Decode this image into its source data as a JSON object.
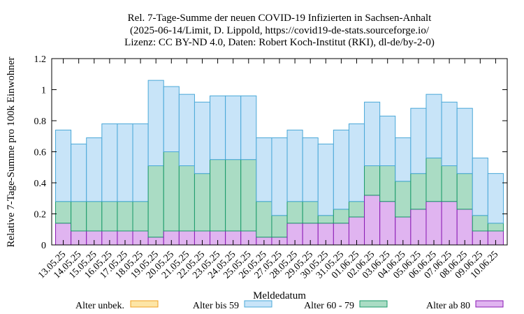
{
  "chart_data": {
    "type": "bar",
    "stacked": true,
    "title_lines": [
      "Rel. 7-Tage-Summe der neuen COVID-19 Infizierten in Sachsen-Anhalt",
      "(2025-06-14/Limit, D. Lippold, https://covid19-de-stats.sourceforge.io/",
      "Lizenz: CC BY-ND 4.0, Daten: Robert Koch-Institut (RKI), dl-de/by-2-0)"
    ],
    "xlabel": "Meldedatum",
    "ylabel": "Relative 7-Tage-Summe pro 100k Einwohner",
    "ylim": [
      0,
      1.2
    ],
    "yticks": [
      "0",
      "0.2",
      "0.4",
      "0.6",
      "0.8",
      "1",
      "1.2"
    ],
    "grid": false,
    "legend_position": "bottom",
    "categories": [
      "13.05.25",
      "14.05.25",
      "15.05.25",
      "16.05.25",
      "17.05.25",
      "18.05.25",
      "19.05.25",
      "20.05.25",
      "21.05.25",
      "22.05.25",
      "23.05.25",
      "24.05.25",
      "25.05.25",
      "26.05.25",
      "27.05.25",
      "28.05.25",
      "29.05.25",
      "30.05.25",
      "31.05.25",
      "01.06.25",
      "02.06.25",
      "03.06.25",
      "04.06.25",
      "05.06.25",
      "06.06.25",
      "07.06.25",
      "08.06.25",
      "09.06.25",
      "10.06.25"
    ],
    "series": [
      {
        "name": "Alter unbek.",
        "fill": "#fde5a6",
        "stroke": "#f0a020",
        "values": [
          0,
          0,
          0,
          0,
          0,
          0,
          0,
          0,
          0,
          0,
          0,
          0,
          0,
          0,
          0,
          0,
          0,
          0,
          0,
          0,
          0,
          0,
          0,
          0,
          0,
          0,
          0,
          0,
          0
        ]
      },
      {
        "name": "Alter ab 80",
        "fill": "#e0b4f0",
        "stroke": "#8a1ab4",
        "values": [
          0.14,
          0.09,
          0.09,
          0.09,
          0.09,
          0.09,
          0.05,
          0.09,
          0.09,
          0.09,
          0.09,
          0.09,
          0.09,
          0.05,
          0.05,
          0.14,
          0.14,
          0.14,
          0.14,
          0.18,
          0.32,
          0.28,
          0.18,
          0.23,
          0.28,
          0.28,
          0.23,
          0.09,
          0.09
        ]
      },
      {
        "name": "Alter 60 - 79",
        "fill": "#aadcc4",
        "stroke": "#1a9a6a",
        "values": [
          0.14,
          0.19,
          0.19,
          0.19,
          0.19,
          0.19,
          0.46,
          0.51,
          0.42,
          0.37,
          0.46,
          0.46,
          0.46,
          0.23,
          0.14,
          0.14,
          0.14,
          0.05,
          0.09,
          0.1,
          0.19,
          0.23,
          0.23,
          0.23,
          0.28,
          0.23,
          0.23,
          0.1,
          0.05
        ]
      },
      {
        "name": "Alter bis 59",
        "fill": "#c8e4f8",
        "stroke": "#4aa8d8",
        "values": [
          0.46,
          0.37,
          0.41,
          0.5,
          0.5,
          0.5,
          0.55,
          0.42,
          0.46,
          0.46,
          0.41,
          0.41,
          0.41,
          0.41,
          0.5,
          0.46,
          0.41,
          0.46,
          0.51,
          0.5,
          0.41,
          0.32,
          0.28,
          0.42,
          0.41,
          0.41,
          0.42,
          0.37,
          0.32
        ]
      }
    ]
  }
}
